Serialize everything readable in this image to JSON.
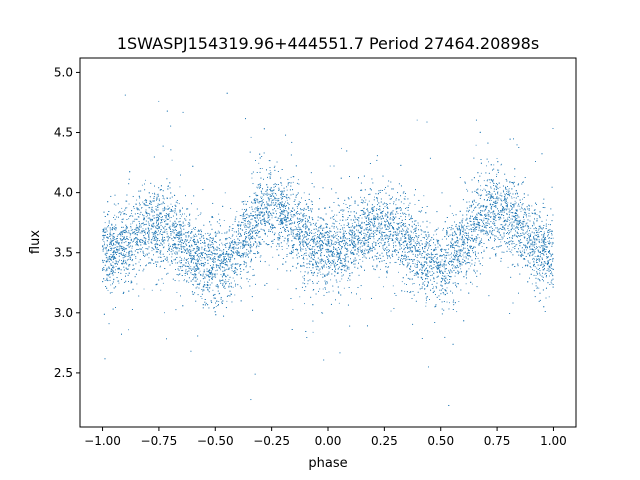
{
  "chart_data": {
    "type": "scatter",
    "title": "1SWASPJ154319.96+444551.7 Period 27464.20898s",
    "xlabel": "phase",
    "ylabel": "flux",
    "xlim": [
      -1.1,
      1.1
    ],
    "ylim": [
      2.05,
      5.12
    ],
    "xticks": [
      -1.0,
      -0.75,
      -0.5,
      -0.25,
      0.0,
      0.25,
      0.5,
      0.75,
      1.0
    ],
    "xtick_labels": [
      "−1.00",
      "−0.75",
      "−0.50",
      "−0.25",
      "0.00",
      "0.25",
      "0.50",
      "0.75",
      "1.00"
    ],
    "yticks": [
      2.5,
      3.0,
      3.5,
      4.0,
      4.5,
      5.0
    ],
    "ytick_labels": [
      "2.5",
      "3.0",
      "3.5",
      "4.0",
      "4.5",
      "5.0"
    ],
    "grid": false,
    "marker_color": "#1f77b4",
    "series": [
      {
        "profile": {
          "phase": [
            -1.0,
            -0.75,
            -0.5,
            -0.25,
            0.0,
            0.25,
            0.5,
            0.75,
            1.0
          ],
          "flux": [
            3.5,
            3.72,
            3.38,
            3.85,
            3.5,
            3.72,
            3.38,
            3.85,
            3.5
          ]
        },
        "approx_points": 14000,
        "typical_scatter": 0.16,
        "flux_range": [
          2.2,
          4.9
        ]
      }
    ]
  }
}
